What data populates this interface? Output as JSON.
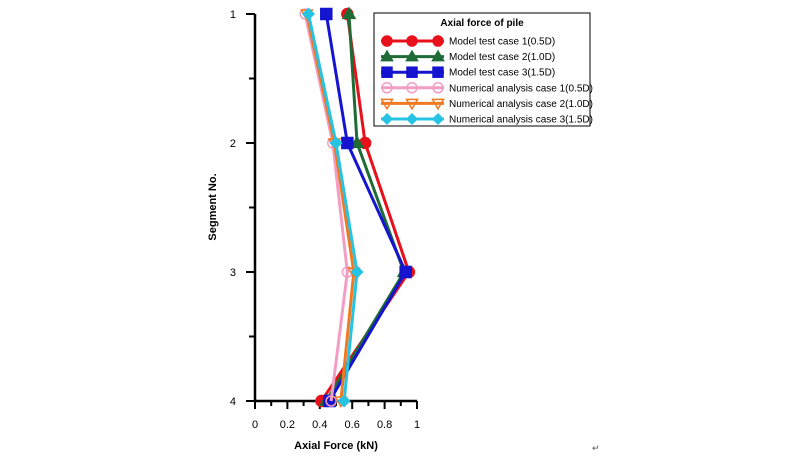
{
  "chart_data": {
    "type": "line",
    "xlabel": "Axial Force (kN)",
    "ylabel": "Segment  No.",
    "xlim": [
      0,
      1
    ],
    "ylim": [
      1,
      4
    ],
    "y_inverted": true,
    "x_ticks": [
      "0",
      "0.2",
      "0.4",
      "0.6",
      "0.8",
      "1"
    ],
    "x_tick_values": [
      0,
      0.2,
      0.4,
      0.6,
      0.8,
      1
    ],
    "y_ticks": [
      "1",
      "2",
      "3",
      "4"
    ],
    "y_tick_values": [
      1,
      2,
      3,
      4
    ],
    "legend_title": "Axial force of pile",
    "legend_position": "top-right",
    "series": [
      {
        "name": "Model test case 1(0.5D)",
        "color": "#e8101a",
        "marker": "circle",
        "filled": true,
        "x": [
          0.57,
          0.68,
          0.95,
          0.41
        ],
        "y": [
          1,
          2,
          3,
          4
        ]
      },
      {
        "name": "Model test case 2(1.0D)",
        "color": "#1f6b35",
        "marker": "triangle-up",
        "filled": true,
        "x": [
          0.58,
          0.63,
          0.92,
          0.44
        ],
        "y": [
          1,
          2,
          3,
          4
        ]
      },
      {
        "name": "Model test case 3(1.5D)",
        "color": "#1515d0",
        "marker": "square",
        "filled": true,
        "x": [
          0.44,
          0.57,
          0.93,
          0.46
        ],
        "y": [
          1,
          2,
          3,
          4
        ]
      },
      {
        "name": "Numerical analysis case 1(0.5D)",
        "color": "#f29ec4",
        "marker": "circle",
        "filled": false,
        "x": [
          0.31,
          0.48,
          0.57,
          0.47
        ],
        "y": [
          1,
          2,
          3,
          4
        ]
      },
      {
        "name": "Numerical analysis case 2(1.0D)",
        "color": "#f07a22",
        "marker": "triangle-down",
        "filled": false,
        "x": [
          0.32,
          0.49,
          0.61,
          0.53
        ],
        "y": [
          1,
          2,
          3,
          4
        ]
      },
      {
        "name": "Numerical analysis case 3(1.5D)",
        "color": "#27c3e3",
        "marker": "diamond",
        "filled": true,
        "x": [
          0.33,
          0.5,
          0.63,
          0.55
        ],
        "y": [
          1,
          2,
          3,
          4
        ]
      }
    ],
    "footnote": "↵"
  }
}
